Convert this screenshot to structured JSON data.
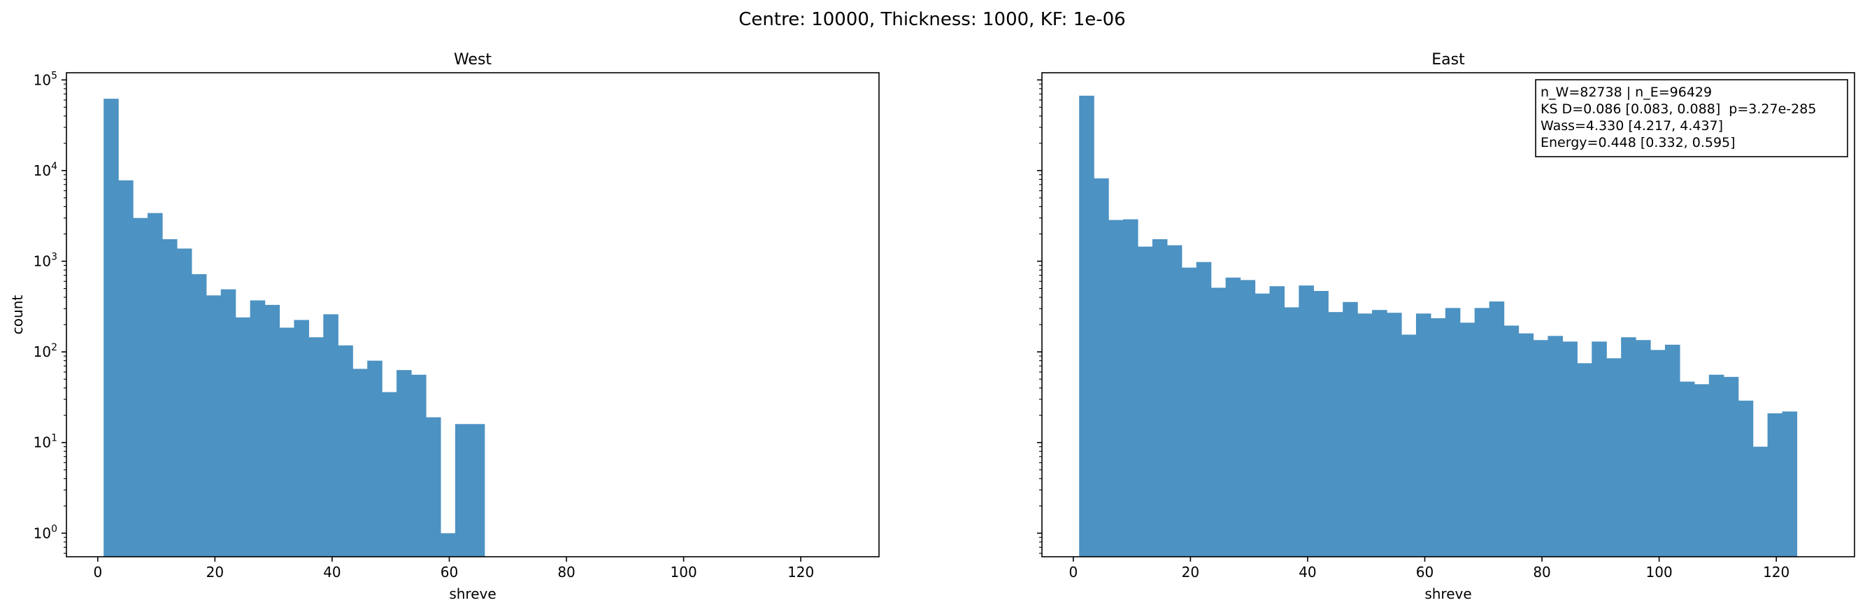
{
  "figure": {
    "suptitle": "Centre: 10000, Thickness: 1000, KF: 1e-06"
  },
  "chart_data": [
    {
      "type": "bar",
      "title": "West",
      "xlabel": "shreve",
      "ylabel": "count",
      "yscale": "log",
      "xlim": [
        -5.35,
        133.35
      ],
      "ylim": [
        0.55,
        120000
      ],
      "xticks": [
        0,
        20,
        40,
        60,
        80,
        100,
        120
      ],
      "yticks": [
        {
          "value": 1,
          "base": "10",
          "exp": "0"
        },
        {
          "value": 10,
          "base": "10",
          "exp": "1"
        },
        {
          "value": 100,
          "base": "10",
          "exp": "2"
        },
        {
          "value": 1000,
          "base": "10",
          "exp": "3"
        },
        {
          "value": 10000,
          "base": "10",
          "exp": "4"
        },
        {
          "value": 100000,
          "base": "10",
          "exp": "5"
        }
      ],
      "bin_start": 1,
      "bin_width": 2.5,
      "color": "#4c92c3",
      "values": [
        62000,
        7800,
        3000,
        3400,
        1750,
        1380,
        720,
        420,
        490,
        240,
        370,
        330,
        185,
        225,
        145,
        260,
        118,
        65,
        80,
        36,
        63,
        56,
        19,
        1,
        16,
        16,
        0,
        0,
        0,
        0,
        0,
        0,
        0,
        0,
        0,
        0,
        0,
        0,
        0,
        0,
        0,
        0,
        0,
        0,
        0,
        0,
        0,
        0,
        0,
        0,
        0
      ],
      "grid": false,
      "legend": null,
      "stats_box": null
    },
    {
      "type": "bar",
      "title": "East",
      "xlabel": "shreve",
      "ylabel": "",
      "yscale": "log",
      "xlim": [
        -5.35,
        133.35
      ],
      "ylim": [
        0.55,
        120000
      ],
      "xticks": [
        0,
        20,
        40,
        60,
        80,
        100,
        120
      ],
      "yticks": [],
      "bin_start": 1,
      "bin_width": 2.5,
      "color": "#4c92c3",
      "values": [
        67000,
        8200,
        2850,
        2900,
        1450,
        1750,
        1500,
        850,
        980,
        510,
        660,
        620,
        440,
        530,
        310,
        540,
        470,
        275,
        355,
        265,
        290,
        270,
        155,
        265,
        235,
        305,
        210,
        305,
        360,
        195,
        160,
        135,
        150,
        130,
        75,
        130,
        85,
        145,
        135,
        105,
        120,
        47,
        44,
        56,
        53,
        29,
        9,
        21,
        22
      ],
      "grid": false,
      "legend": null,
      "stats_box": {
        "lines": [
          "n_W=82738 | n_E=96429",
          "KS D=0.086 [0.083, 0.088]  p=3.27e-285",
          "Wass=4.330 [4.217, 4.437]",
          "Energy=0.448 [0.332, 0.595]"
        ]
      }
    }
  ]
}
